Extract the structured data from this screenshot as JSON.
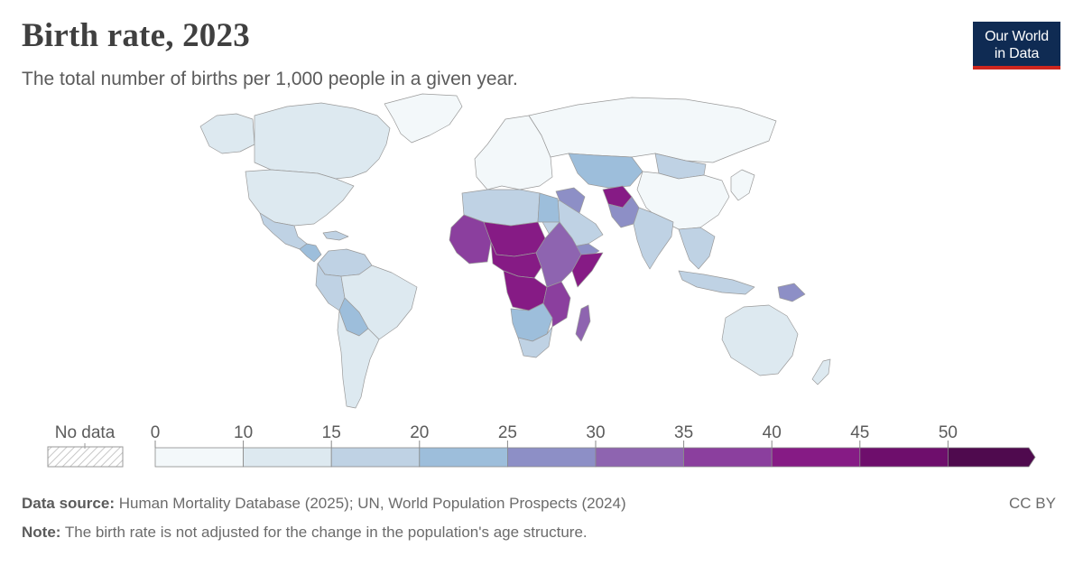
{
  "header": {
    "title": "Birth rate, 2023",
    "subtitle": "The total number of births per 1,000 people in a given year."
  },
  "logo": {
    "line1": "Our World",
    "line2": "in Data"
  },
  "legend": {
    "no_data_label": "No data",
    "ticks": [
      "0",
      "10",
      "15",
      "20",
      "25",
      "30",
      "35",
      "40",
      "45",
      "50"
    ],
    "bins": [
      {
        "range": "0-10",
        "color": "#f3f8fa"
      },
      {
        "range": "10-15",
        "color": "#dde9f0"
      },
      {
        "range": "15-20",
        "color": "#bfd2e4"
      },
      {
        "range": "20-25",
        "color": "#9dbedb"
      },
      {
        "range": "25-30",
        "color": "#8d8fc6"
      },
      {
        "range": "30-35",
        "color": "#8e64b0"
      },
      {
        "range": "35-40",
        "color": "#8b3f9e"
      },
      {
        "range": "40-45",
        "color": "#861b85"
      },
      {
        "range": "45-50",
        "color": "#6e0e6c"
      },
      {
        "range": "50+",
        "color": "#4f0a4e"
      }
    ]
  },
  "map_data": {
    "regions": [
      {
        "name": "Canada",
        "bin": 1
      },
      {
        "name": "Alaska",
        "bin": 1
      },
      {
        "name": "Greenland",
        "bin": 0
      },
      {
        "name": "United States",
        "bin": 1
      },
      {
        "name": "Mexico",
        "bin": 2
      },
      {
        "name": "Central America",
        "bin": 3
      },
      {
        "name": "Caribbean",
        "bin": 2
      },
      {
        "name": "Colombia & Venezuela",
        "bin": 2
      },
      {
        "name": "Brazil",
        "bin": 1
      },
      {
        "name": "Peru & Ecuador",
        "bin": 2
      },
      {
        "name": "Bolivia & Paraguay",
        "bin": 3
      },
      {
        "name": "Argentina & Chile",
        "bin": 1
      },
      {
        "name": "Europe",
        "bin": 0
      },
      {
        "name": "Russia",
        "bin": 0
      },
      {
        "name": "Central Asia",
        "bin": 3
      },
      {
        "name": "China",
        "bin": 0
      },
      {
        "name": "Mongolia",
        "bin": 2
      },
      {
        "name": "Middle East",
        "bin": 2
      },
      {
        "name": "Iraq & Syria",
        "bin": 4
      },
      {
        "name": "Afghanistan",
        "bin": 7
      },
      {
        "name": "Pakistan",
        "bin": 4
      },
      {
        "name": "India",
        "bin": 2
      },
      {
        "name": "Southeast Asia",
        "bin": 2
      },
      {
        "name": "Japan & Korea",
        "bin": 0
      },
      {
        "name": "Indonesia",
        "bin": 2
      },
      {
        "name": "Papua New Guinea",
        "bin": 4
      },
      {
        "name": "Australia",
        "bin": 1
      },
      {
        "name": "New Zealand",
        "bin": 1
      },
      {
        "name": "North Africa",
        "bin": 2
      },
      {
        "name": "Egypt",
        "bin": 3
      },
      {
        "name": "West Africa",
        "bin": 6
      },
      {
        "name": "Sahel",
        "bin": 7
      },
      {
        "name": "Central Africa",
        "bin": 7
      },
      {
        "name": "DR Congo",
        "bin": 7
      },
      {
        "name": "East Africa",
        "bin": 5
      },
      {
        "name": "Somalia",
        "bin": 7
      },
      {
        "name": "Yemen",
        "bin": 4
      },
      {
        "name": "Southern Africa",
        "bin": 3
      },
      {
        "name": "South Africa",
        "bin": 2
      },
      {
        "name": "Madagascar",
        "bin": 5
      },
      {
        "name": "Mozambique & Zambia",
        "bin": 6
      }
    ]
  },
  "footer": {
    "source_label": "Data source:",
    "source_text": "Human Mortality Database (2025); UN, World Population Prospects (2024)",
    "note_label": "Note:",
    "note_text": "The birth rate is not adjusted for the change in the population's age structure.",
    "license": "CC BY"
  }
}
